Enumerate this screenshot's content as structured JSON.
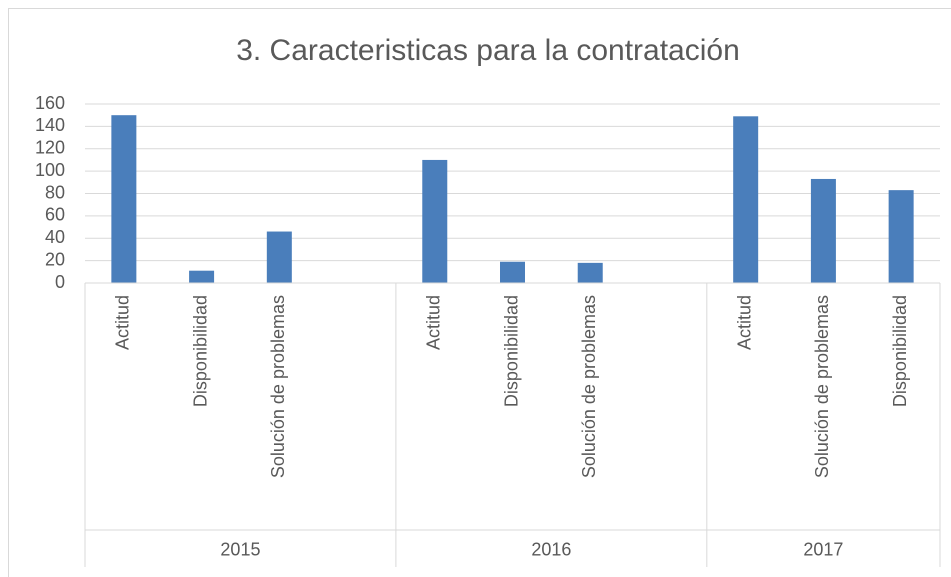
{
  "chart_data": {
    "type": "bar",
    "title": "3. Caracteristicas para la contratación",
    "color": "#4a7ebb",
    "grid": true,
    "ylim": [
      0,
      160
    ],
    "yticks": [
      0,
      20,
      40,
      60,
      80,
      100,
      120,
      140,
      160
    ],
    "groups": [
      {
        "name": "2015",
        "categories": [
          "Actitud",
          "Disponibilidad",
          "Solución de problemas",
          null
        ],
        "values": [
          150,
          11,
          46,
          null
        ]
      },
      {
        "name": "2016",
        "categories": [
          "Actitud",
          "Disponibilidad",
          "Solución de problemas",
          null
        ],
        "values": [
          110,
          19,
          18,
          null
        ]
      },
      {
        "name": "2017",
        "categories": [
          "Actitud",
          "Solución de problemas",
          "Disponibilidad"
        ],
        "values": [
          149,
          93,
          83
        ]
      }
    ]
  }
}
